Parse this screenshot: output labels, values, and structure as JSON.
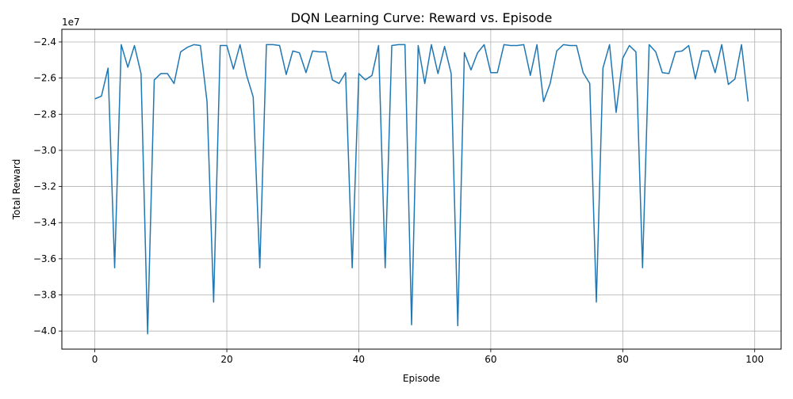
{
  "chart_data": {
    "type": "line",
    "title": "DQN Learning Curve: Reward vs. Episode",
    "xlabel": "Episode",
    "ylabel": "Total Reward",
    "offset_text": "1e7",
    "xlim": [
      -5,
      104
    ],
    "ylim": [
      -4.1,
      -2.33
    ],
    "xticks": [
      0,
      20,
      40,
      60,
      80,
      100
    ],
    "xtick_labels": [
      "0",
      "20",
      "40",
      "60",
      "80",
      "100"
    ],
    "yticks": [
      -4.0,
      -3.8,
      -3.6,
      -3.4,
      -3.2,
      -3.0,
      -2.8,
      -2.6,
      -2.4
    ],
    "ytick_labels": [
      "−4.0",
      "−3.8",
      "−3.6",
      "−3.4",
      "−3.2",
      "−3.0",
      "−2.8",
      "−2.6",
      "−2.4"
    ],
    "grid": true,
    "line_color": "#1f77b4",
    "series": [
      {
        "x": [
          0,
          1,
          2,
          3,
          4,
          5,
          6,
          7,
          8,
          9,
          10,
          11,
          12,
          13,
          14,
          15,
          16,
          17,
          18,
          19,
          20,
          21,
          22,
          23,
          24,
          25,
          26,
          27,
          28,
          29,
          30,
          31,
          32,
          33,
          34,
          35,
          36,
          37,
          38,
          39,
          40,
          41,
          42,
          43,
          44,
          45,
          46,
          47,
          48,
          49,
          50,
          51,
          52,
          53,
          54,
          55,
          56,
          57,
          58,
          59,
          60,
          61,
          62,
          63,
          64,
          65,
          66,
          67,
          68,
          69,
          70,
          71,
          72,
          73,
          74,
          75,
          76,
          77,
          78,
          79,
          80,
          81,
          82,
          83,
          84,
          85,
          86,
          87,
          88,
          89,
          90,
          91,
          92,
          93,
          94,
          95,
          96,
          97,
          98,
          99
        ],
        "y": [
          -2.715,
          -2.7,
          -2.545,
          -3.65,
          -2.415,
          -2.54,
          -2.42,
          -2.575,
          -4.015,
          -2.61,
          -2.575,
          -2.575,
          -2.63,
          -2.455,
          -2.43,
          -2.415,
          -2.42,
          -2.73,
          -3.84,
          -2.42,
          -2.42,
          -2.55,
          -2.415,
          -2.585,
          -2.705,
          -3.65,
          -2.415,
          -2.415,
          -2.42,
          -2.58,
          -2.45,
          -2.46,
          -2.57,
          -2.45,
          -2.455,
          -2.455,
          -2.61,
          -2.63,
          -2.57,
          -3.65,
          -2.575,
          -2.61,
          -2.585,
          -2.42,
          -3.65,
          -2.42,
          -2.415,
          -2.415,
          -3.965,
          -2.42,
          -2.63,
          -2.415,
          -2.575,
          -2.425,
          -2.575,
          -3.97,
          -2.46,
          -2.555,
          -2.46,
          -2.415,
          -2.57,
          -2.57,
          -2.415,
          -2.42,
          -2.42,
          -2.415,
          -2.585,
          -2.415,
          -2.73,
          -2.63,
          -2.45,
          -2.415,
          -2.42,
          -2.42,
          -2.57,
          -2.63,
          -3.84,
          -2.545,
          -2.415,
          -2.79,
          -2.49,
          -2.42,
          -2.455,
          -3.65,
          -2.415,
          -2.455,
          -2.57,
          -2.575,
          -2.455,
          -2.45,
          -2.42,
          -2.605,
          -2.45,
          -2.45,
          -2.57,
          -2.415,
          -2.635,
          -2.605,
          -2.415,
          -2.73
        ]
      }
    ]
  }
}
